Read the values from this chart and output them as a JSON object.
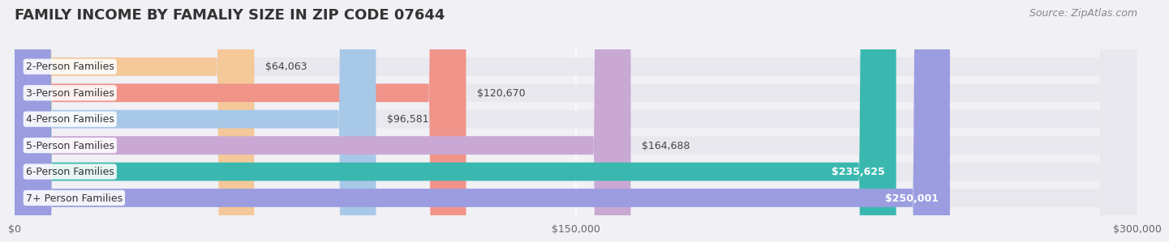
{
  "title": "FAMILY INCOME BY FAMALIY SIZE IN ZIP CODE 07644",
  "source": "Source: ZipAtlas.com",
  "categories": [
    "2-Person Families",
    "3-Person Families",
    "4-Person Families",
    "5-Person Families",
    "6-Person Families",
    "7+ Person Families"
  ],
  "values": [
    64063,
    120670,
    96581,
    164688,
    235625,
    250001
  ],
  "bar_colors": [
    "#f5c89a",
    "#f0948a",
    "#a8c8e8",
    "#c9a8d4",
    "#3ab8b0",
    "#9b9de0"
  ],
  "value_labels": [
    "$64,063",
    "$120,670",
    "$96,581",
    "$164,688",
    "$235,625",
    "$250,001"
  ],
  "value_inside": [
    false,
    false,
    false,
    false,
    true,
    true
  ],
  "xlim": [
    0,
    300000
  ],
  "xticks": [
    0,
    150000,
    300000
  ],
  "xtick_labels": [
    "$0",
    "$150,000",
    "$300,000"
  ],
  "background_color": "#f0f0f5",
  "bar_bg_color": "#e8e8ee",
  "title_fontsize": 13,
  "label_fontsize": 9,
  "value_fontsize": 9,
  "source_fontsize": 9
}
